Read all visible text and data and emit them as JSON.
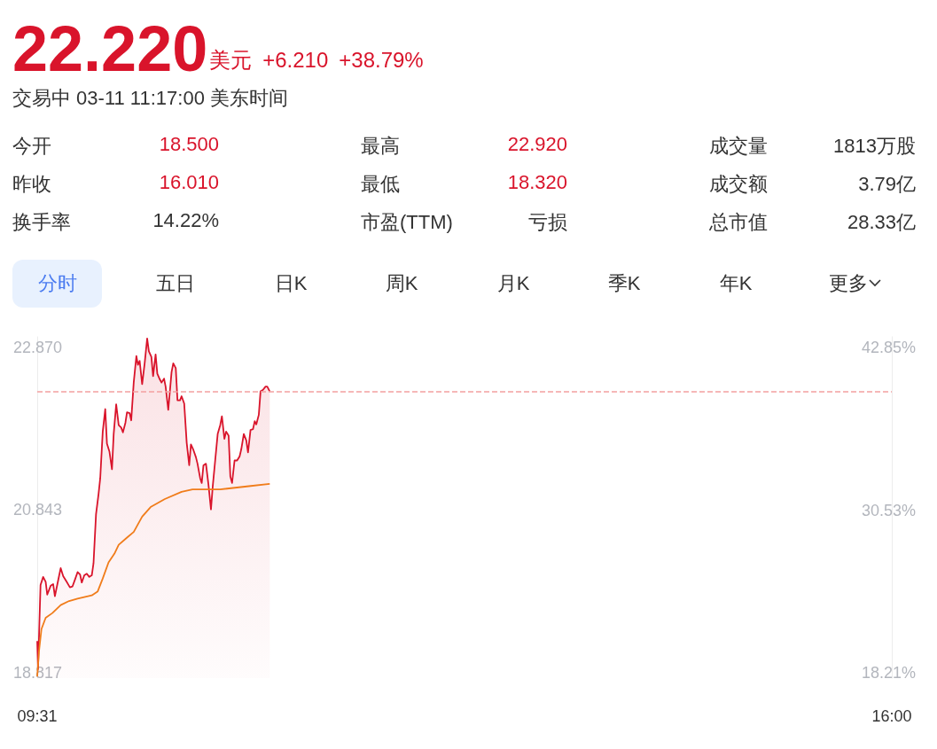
{
  "chart_data": [
    {
      "type": "other",
      "annotations": [
        "22.220",
        "美元",
        "+6.210",
        "+38.79%",
        "交易中 03-11 11:17:00 美东时间",
        "今开",
        "18.500",
        "最高",
        "22.920",
        "成交量",
        "1813万股",
        "昨收",
        "16.010",
        "最低",
        "18.320",
        "成交额",
        "3.79亿",
        "换手率",
        "14.22%",
        "市盈(TTM)",
        "亏损",
        "总市值",
        "28.33亿",
        "分时",
        "五日",
        "日K",
        "周K",
        "月K",
        "季K",
        "年K",
        "更多"
      ]
    },
    {
      "type": "line",
      "xlim": [
        9.517,
        16
      ],
      "xticks": [
        {
          "value": 9.517,
          "label": "09:31"
        },
        {
          "value": 16,
          "label": "16:00"
        }
      ],
      "ylim": [
        18.75,
        23.0
      ],
      "yticks": [
        18.817,
        20.843,
        {
          "value": 22.87,
          "label": "22.870"
        }
      ],
      "y2lim": [
        17.81,
        43.66
      ],
      "y2ticks": [
        {
          "value": 18.21,
          "label": "18.21%"
        },
        {
          "value": 30.53,
          "label": "30.53%"
        },
        {
          "value": 42.85,
          "label": "42.85%"
        }
      ],
      "grid": false,
      "ref_lines": [
        {
          "axis": "y",
          "value": 22.32,
          "color": "#f4a0a0",
          "line_style": "dashed"
        }
      ],
      "series": [
        {
          "type": "area",
          "color": "#d9142b",
          "x": [
            9.517,
            9.523,
            9.542,
            9.562,
            9.581,
            9.593,
            9.619,
            9.638,
            9.651,
            9.676,
            9.695,
            9.714,
            9.74,
            9.765,
            9.784,
            9.804,
            9.823,
            9.842,
            9.855,
            9.874,
            9.893,
            9.912,
            9.931,
            9.944,
            9.963,
            9.982,
            9.995,
            10.014,
            10.033,
            10.046,
            10.065,
            10.084,
            10.097,
            10.116,
            10.135,
            10.154,
            10.167,
            10.186,
            10.198,
            10.218,
            10.23,
            10.249,
            10.269,
            10.281,
            10.294,
            10.313,
            10.332,
            10.351,
            10.364,
            10.383,
            10.396,
            10.415,
            10.428,
            10.447,
            10.46,
            10.479,
            10.491,
            10.511,
            10.536,
            10.549,
            10.568,
            10.581,
            10.6,
            10.612,
            10.632,
            10.651,
            10.67,
            10.683,
            10.702,
            10.721,
            10.733,
            10.753,
            10.765,
            10.778,
            10.797,
            10.816,
            10.835,
            10.848,
            10.867,
            10.886,
            10.905,
            10.918,
            10.937,
            10.95,
            10.969,
            10.982,
            10.995,
            11.014,
            11.033,
            11.052,
            11.065,
            11.084,
            11.103,
            11.116,
            11.135,
            11.154,
            11.167,
            11.179,
            11.198,
            11.211,
            11.23,
            11.249,
            11.262,
            11.281
          ],
          "values": [
            19.21,
            18.86,
            19.91,
            20.01,
            19.95,
            19.79,
            19.9,
            19.92,
            19.77,
            19.97,
            20.12,
            20.02,
            19.95,
            19.88,
            19.89,
            19.98,
            20.07,
            20.04,
            19.94,
            20.03,
            20.05,
            20.01,
            20.03,
            20.18,
            20.79,
            21.04,
            21.24,
            21.82,
            22.1,
            21.67,
            21.57,
            21.35,
            21.79,
            22.16,
            21.9,
            21.87,
            21.81,
            21.93,
            22.06,
            22.05,
            21.96,
            22.43,
            22.76,
            22.65,
            22.7,
            22.41,
            22.67,
            22.98,
            22.82,
            22.75,
            22.51,
            22.78,
            22.54,
            22.47,
            22.43,
            22.48,
            22.38,
            22.09,
            22.56,
            22.67,
            22.61,
            22.21,
            22.21,
            22.26,
            22.17,
            21.68,
            21.4,
            21.66,
            21.59,
            21.5,
            21.42,
            21.24,
            21.18,
            21.4,
            21.42,
            21.16,
            20.85,
            21.13,
            21.46,
            21.79,
            21.9,
            22.01,
            21.73,
            21.82,
            21.77,
            21.26,
            21.18,
            21.46,
            21.46,
            21.51,
            21.6,
            21.79,
            21.71,
            21.56,
            21.84,
            21.85,
            21.95,
            21.91,
            22.03,
            22.32,
            22.34,
            22.38,
            22.38,
            22.32
          ]
        },
        {
          "type": "line",
          "color": "#f07c1a",
          "x": [
            9.517,
            9.53,
            9.549,
            9.581,
            9.632,
            9.695,
            9.759,
            9.823,
            9.931,
            9.976,
            10.014,
            10.058,
            10.103,
            10.135,
            10.198,
            10.249,
            10.313,
            10.377,
            10.485,
            10.612,
            10.695,
            10.905,
            11.122,
            11.281
          ],
          "values": [
            18.77,
            19.08,
            19.36,
            19.5,
            19.56,
            19.66,
            19.71,
            19.74,
            19.78,
            19.83,
            19.99,
            20.19,
            20.3,
            20.41,
            20.5,
            20.57,
            20.76,
            20.88,
            20.98,
            21.07,
            21.1,
            21.1,
            21.14,
            21.17
          ]
        }
      ]
    }
  ]
}
